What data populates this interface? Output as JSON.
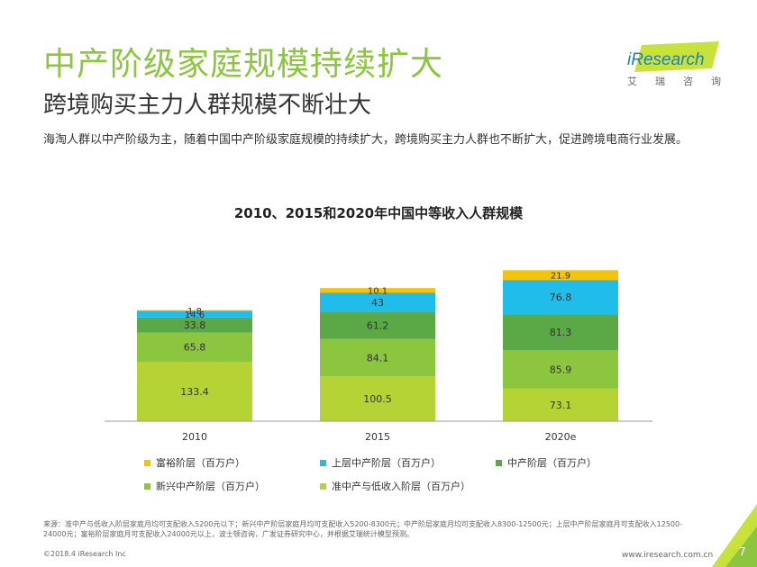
{
  "header": {
    "title": "中产阶级家庭规模持续扩大",
    "subtitle": "跨境购买主力人群规模不断壮大",
    "intro": "海淘人群以中产阶级为主，随着中国中产阶级家庭规模的持续扩大，跨境购买主力人群也不断扩大，促进跨境电商行业发展。"
  },
  "logo": {
    "name": "iResearch",
    "cn_chars": [
      "艾",
      "瑞",
      "咨",
      "询"
    ],
    "color": "#c8e23c"
  },
  "chart_data": {
    "type": "bar",
    "stacked": true,
    "title": "2010、2015和2020年中国中等收入人群规模",
    "categories": [
      "2010",
      "2015",
      "2020e"
    ],
    "series": [
      {
        "name": "准中产与低收入阶层（百万户）",
        "color": "#b5d334",
        "values": [
          133.4,
          100.5,
          73.1
        ]
      },
      {
        "name": "新兴中产阶层（百万户）",
        "color": "#8cc63f",
        "values": [
          65.8,
          84.1,
          85.9
        ]
      },
      {
        "name": "中产阶层（百万户）",
        "color": "#5aa846",
        "values": [
          33.8,
          61.2,
          81.3
        ]
      },
      {
        "name": "上层中产阶层（百万户）",
        "color": "#21bdea",
        "values": [
          14.6,
          43,
          76.8
        ]
      },
      {
        "name": "富裕阶层（百万户）",
        "color": "#f2c40f",
        "values": [
          1.8,
          10.1,
          21.9
        ]
      }
    ],
    "legend_order": [
      4,
      3,
      2,
      1,
      0
    ],
    "ylim": [
      0,
      380
    ],
    "grid": false,
    "legend_position": "bottom"
  },
  "footer": {
    "source": "来源：准中产与低收入阶层家庭月均可支配收入5200元以下；新兴中产阶层家庭月均可支配收入5200-8300元；中产阶层家庭月均可支配收入8300-12500元；上层中产阶层家庭月可支配收入12500-24000元；富裕阶层家庭月可支配收入24000元以上，波士顿咨询，广发证券研究中心，并根据艾瑞统计模型预测。",
    "copyright": "©2018.4 iResearch Inc",
    "url": "www.iresearch.com.cn",
    "page": "7"
  }
}
